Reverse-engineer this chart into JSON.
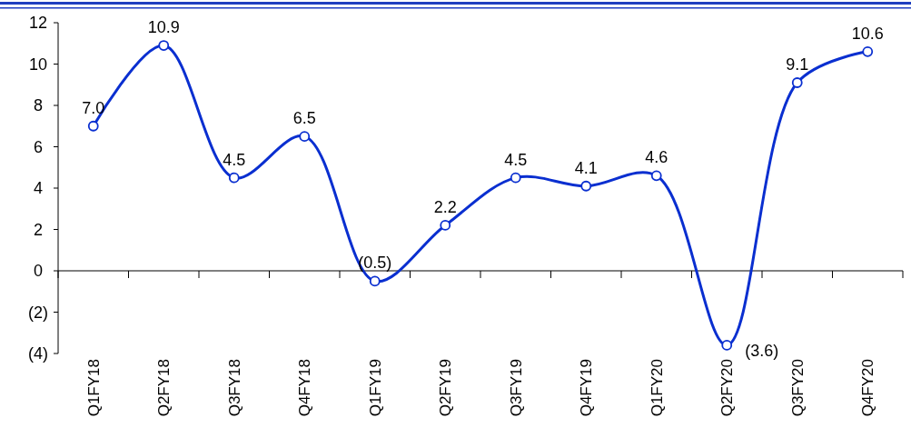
{
  "chart_data": {
    "type": "line",
    "categories": [
      "Q1FY18",
      "Q2FY18",
      "Q3FY18",
      "Q4FY18",
      "Q1FY19",
      "Q2FY19",
      "Q3FY19",
      "Q4FY19",
      "Q1FY20",
      "Q2FY20",
      "Q3FY20",
      "Q4FY20"
    ],
    "series": [
      {
        "color": "#0a2fd0",
        "values": [
          7.0,
          10.9,
          4.5,
          6.5,
          -0.5,
          2.2,
          4.5,
          4.1,
          4.6,
          -3.6,
          9.1,
          10.6
        ],
        "value_labels": [
          "7.0",
          "10.9",
          "4.5",
          "6.5",
          "(0.5)",
          "2.2",
          "4.5",
          "4.1",
          "4.6",
          "(3.6)",
          "9.1",
          "10.6"
        ]
      }
    ],
    "ylim": [
      -4,
      12
    ],
    "yticks": [
      {
        "value": -4,
        "label": "(4)"
      },
      {
        "value": -2,
        "label": "(2)"
      },
      0,
      2,
      4,
      6,
      8,
      10,
      12
    ],
    "marker": "circle",
    "line_style": "solid"
  }
}
